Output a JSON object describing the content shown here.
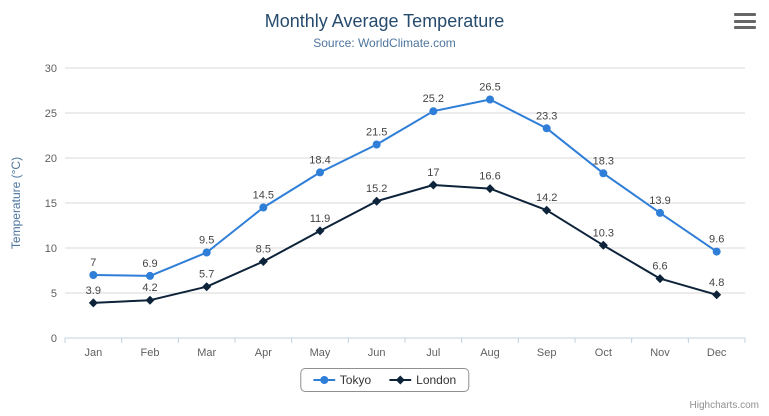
{
  "credits": {
    "label": "Highcharts.com"
  },
  "colors": {
    "grid": "#d8d8d8",
    "axis_line": "#c0d0e0",
    "tick": "#c0d0e0",
    "axis_label": "#606060",
    "y_axis_title": "#4d759e",
    "data_label": "#444444",
    "title": "#274b6d",
    "subtitle": "#4d759e",
    "legend_border": "#909090"
  },
  "chart_data": {
    "type": "line",
    "title": "Monthly Average Temperature",
    "subtitle": "Source: WorldClimate.com",
    "categories": [
      "Jan",
      "Feb",
      "Mar",
      "Apr",
      "May",
      "Jun",
      "Jul",
      "Aug",
      "Sep",
      "Oct",
      "Nov",
      "Dec"
    ],
    "series": [
      {
        "name": "Tokyo",
        "color": "#2f7ed8",
        "marker": "circle",
        "values": [
          7,
          6.9,
          9.5,
          14.5,
          18.4,
          21.5,
          25.2,
          26.5,
          23.3,
          18.3,
          13.9,
          9.6
        ]
      },
      {
        "name": "London",
        "color": "#0d233a",
        "marker": "diamond",
        "values": [
          3.9,
          4.2,
          5.7,
          8.5,
          11.9,
          15.2,
          17,
          16.6,
          14.2,
          10.3,
          6.6,
          4.8
        ]
      }
    ],
    "xlabel": "",
    "ylabel": "Temperature (°C)",
    "ylim": [
      0,
      30
    ],
    "yticks": [
      0,
      5,
      10,
      15,
      20,
      25,
      30
    ],
    "grid": true,
    "data_labels": true,
    "legend_position": "bottom"
  }
}
